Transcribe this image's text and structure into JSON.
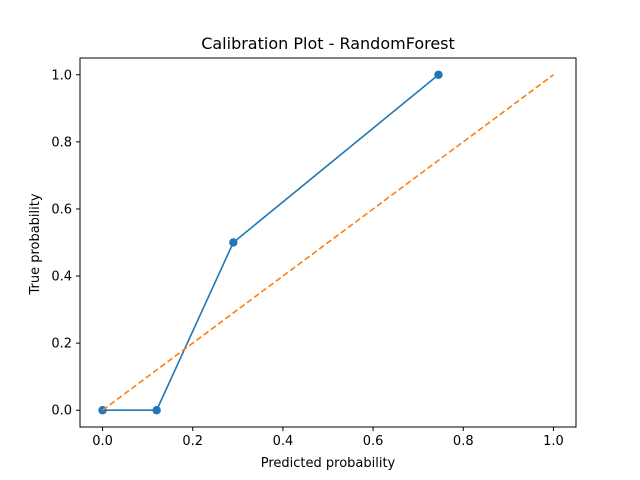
{
  "chart_data": {
    "type": "line",
    "title": "Calibration Plot - RandomForest",
    "xlabel": "Predicted probability",
    "ylabel": "True probability",
    "xlim": [
      -0.05,
      1.05
    ],
    "ylim": [
      -0.05,
      1.05
    ],
    "xticks": [
      "0.0",
      "0.2",
      "0.4",
      "0.6",
      "0.8",
      "1.0"
    ],
    "yticks": [
      "0.0",
      "0.2",
      "0.4",
      "0.6",
      "0.8",
      "1.0"
    ],
    "grid": false,
    "series": [
      {
        "style": "solid-line-with-markers",
        "color": "#1f77b4",
        "x": [
          0.0,
          0.12,
          0.29,
          0.745
        ],
        "y": [
          0.0,
          0.0,
          0.5,
          1.0
        ]
      },
      {
        "style": "dashed-line",
        "color": "#ff7f0e",
        "x": [
          0.0,
          1.0
        ],
        "y": [
          0.0,
          1.0
        ]
      }
    ]
  }
}
